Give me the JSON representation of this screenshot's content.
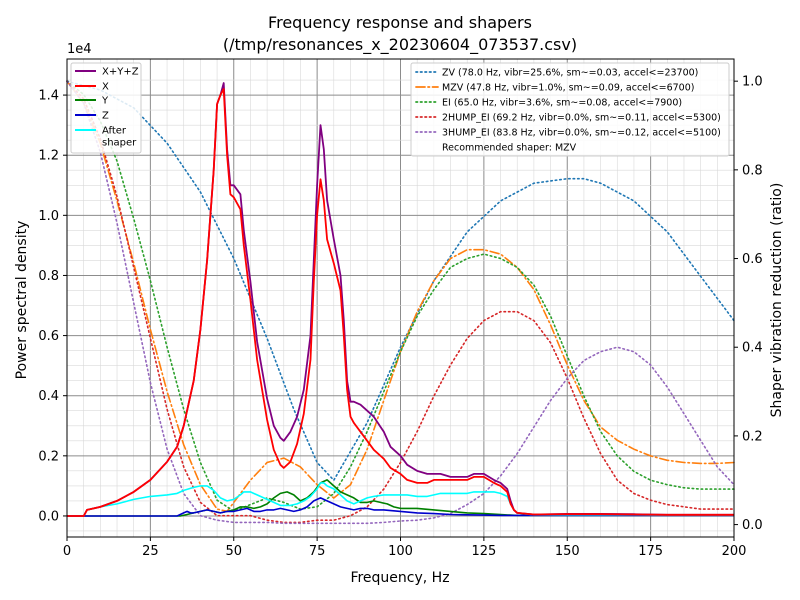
{
  "chart_data": {
    "type": "line",
    "title": "Frequency response and shapers",
    "subtitle": "(/tmp/resonances_x_20230604_073537.csv)",
    "xlabel": "Frequency, Hz",
    "ylabel": "Power spectral density",
    "y2label": "Shaper vibration reduction (ratio)",
    "y_offset_label": "1e4",
    "xlim": [
      0,
      200
    ],
    "ylim": [
      -0.07,
      1.52
    ],
    "y2lim": [
      -0.028,
      1.05
    ],
    "x_ticks": [
      0,
      25,
      50,
      75,
      100,
      125,
      150,
      175,
      200
    ],
    "y_ticks": [
      0.0,
      0.2,
      0.4,
      0.6,
      0.8,
      1.0,
      1.2,
      1.4
    ],
    "y_tick_labels": [
      "0.0",
      "0.2",
      "0.4",
      "0.6",
      "0.8",
      "1.0",
      "1.2",
      "1.4"
    ],
    "y2_ticks": [
      0.0,
      0.2,
      0.4,
      0.6,
      0.8,
      1.0
    ],
    "y2_tick_labels": [
      "0.0",
      "0.2",
      "0.4",
      "0.6",
      "0.8",
      "1.0"
    ],
    "grid": true,
    "legend_left_placement": "top-left",
    "legend_right_placement": "top-right",
    "psd_series": [
      {
        "name": "X+Y+Z",
        "color": "#800080",
        "x": [
          0,
          5,
          6,
          10,
          15,
          20,
          25,
          30,
          33,
          35,
          38,
          40,
          42,
          44,
          45,
          46,
          47,
          48,
          49,
          50,
          52,
          53,
          55,
          57,
          60,
          62,
          64,
          65,
          67,
          69,
          71,
          73,
          74,
          75,
          76,
          77,
          78,
          80,
          82,
          83,
          84,
          85,
          86,
          88,
          90,
          92,
          95,
          97,
          100,
          102,
          105,
          108,
          110,
          112,
          115,
          118,
          120,
          122,
          125,
          128,
          130,
          132,
          133,
          134,
          135,
          140,
          150,
          160,
          170,
          180,
          190,
          200
        ],
        "y": [
          0,
          0,
          0.02,
          0.03,
          0.05,
          0.08,
          0.12,
          0.18,
          0.23,
          0.3,
          0.45,
          0.62,
          0.85,
          1.15,
          1.37,
          1.4,
          1.44,
          1.22,
          1.1,
          1.1,
          1.07,
          0.95,
          0.78,
          0.58,
          0.39,
          0.3,
          0.26,
          0.25,
          0.28,
          0.33,
          0.42,
          0.6,
          0.85,
          1.1,
          1.3,
          1.22,
          1.05,
          0.92,
          0.8,
          0.65,
          0.45,
          0.38,
          0.38,
          0.37,
          0.35,
          0.33,
          0.28,
          0.23,
          0.2,
          0.17,
          0.15,
          0.14,
          0.14,
          0.14,
          0.13,
          0.13,
          0.13,
          0.14,
          0.14,
          0.12,
          0.11,
          0.09,
          0.05,
          0.02,
          0.01,
          0.005,
          0.007,
          0.007,
          0.006,
          0.004,
          0.004,
          0.004
        ]
      },
      {
        "name": "X",
        "color": "#ff0000",
        "x": [
          0,
          5,
          6,
          10,
          15,
          20,
          25,
          30,
          33,
          35,
          38,
          40,
          42,
          44,
          45,
          46,
          47,
          48,
          49,
          50,
          52,
          53,
          55,
          57,
          60,
          62,
          64,
          65,
          67,
          69,
          71,
          73,
          74,
          75,
          76,
          77,
          78,
          80,
          82,
          83,
          84,
          85,
          86,
          88,
          90,
          92,
          95,
          97,
          100,
          102,
          105,
          108,
          110,
          112,
          115,
          118,
          120,
          122,
          125,
          128,
          130,
          132,
          133,
          134,
          135,
          140,
          150,
          160,
          170,
          180,
          190,
          200
        ],
        "y": [
          0,
          0,
          0.02,
          0.03,
          0.05,
          0.08,
          0.12,
          0.18,
          0.23,
          0.3,
          0.45,
          0.62,
          0.85,
          1.15,
          1.37,
          1.4,
          1.42,
          1.2,
          1.07,
          1.06,
          1.02,
          0.9,
          0.72,
          0.52,
          0.32,
          0.22,
          0.17,
          0.16,
          0.18,
          0.24,
          0.34,
          0.52,
          0.78,
          1.0,
          1.12,
          1.05,
          0.92,
          0.84,
          0.75,
          0.6,
          0.42,
          0.33,
          0.31,
          0.28,
          0.25,
          0.22,
          0.19,
          0.16,
          0.14,
          0.12,
          0.11,
          0.11,
          0.12,
          0.12,
          0.12,
          0.12,
          0.12,
          0.13,
          0.13,
          0.11,
          0.1,
          0.08,
          0.04,
          0.02,
          0.01,
          0.005,
          0.006,
          0.006,
          0.005,
          0.004,
          0.004,
          0.004
        ]
      },
      {
        "name": "Y",
        "color": "#008000",
        "x": [
          0,
          5,
          10,
          20,
          30,
          34,
          36,
          38,
          40,
          42,
          44,
          46,
          48,
          50,
          52,
          54,
          56,
          58,
          60,
          62,
          64,
          66,
          68,
          70,
          72,
          74,
          76,
          78,
          80,
          82,
          84,
          86,
          88,
          90,
          92,
          94,
          96,
          98,
          100,
          105,
          110,
          115,
          120,
          125,
          130,
          133,
          135,
          140,
          150,
          200
        ],
        "y": [
          0,
          0,
          0,
          0,
          0,
          0,
          0.005,
          0.01,
          0.015,
          0.02,
          0.015,
          0.01,
          0.015,
          0.02,
          0.03,
          0.03,
          0.025,
          0.03,
          0.04,
          0.06,
          0.075,
          0.08,
          0.07,
          0.05,
          0.06,
          0.08,
          0.11,
          0.12,
          0.1,
          0.08,
          0.07,
          0.06,
          0.045,
          0.045,
          0.05,
          0.045,
          0.04,
          0.03,
          0.025,
          0.025,
          0.02,
          0.015,
          0.01,
          0.008,
          0.005,
          0.003,
          0.002,
          0.002,
          0.002,
          0.002
        ]
      },
      {
        "name": "Z",
        "color": "#0000cd",
        "x": [
          0,
          5,
          10,
          20,
          30,
          33,
          35,
          36,
          37,
          38,
          40,
          42,
          44,
          46,
          48,
          50,
          52,
          54,
          56,
          58,
          60,
          62,
          64,
          66,
          68,
          70,
          72,
          74,
          76,
          78,
          80,
          82,
          84,
          86,
          88,
          90,
          92,
          95,
          100,
          105,
          110,
          115,
          120,
          125,
          130,
          135,
          140,
          150,
          200
        ],
        "y": [
          0,
          0,
          0,
          0,
          0,
          0,
          0.01,
          0.015,
          0.01,
          0.01,
          0.015,
          0.02,
          0.015,
          0.01,
          0.015,
          0.015,
          0.02,
          0.025,
          0.015,
          0.015,
          0.02,
          0.02,
          0.025,
          0.02,
          0.015,
          0.02,
          0.03,
          0.05,
          0.06,
          0.05,
          0.04,
          0.03,
          0.025,
          0.02,
          0.025,
          0.025,
          0.02,
          0.02,
          0.015,
          0.01,
          0.008,
          0.005,
          0.004,
          0.003,
          0.002,
          0.002,
          0.002,
          0.002,
          0.002
        ]
      },
      {
        "name": "After\nshaper",
        "color": "#00ffff",
        "x": [
          0,
          5,
          6,
          10,
          15,
          20,
          25,
          30,
          33,
          35,
          38,
          40,
          42,
          44,
          46,
          48,
          50,
          52,
          53,
          54,
          55,
          57,
          60,
          62,
          64,
          65,
          67,
          69,
          71,
          73,
          75,
          76,
          77,
          78,
          80,
          82,
          84,
          86,
          88,
          90,
          92,
          95,
          97,
          100,
          102,
          105,
          108,
          110,
          112,
          115,
          118,
          120,
          122,
          125,
          128,
          130,
          132,
          133,
          134,
          135,
          140,
          150,
          160,
          170,
          180,
          190,
          200
        ],
        "y": [
          0,
          0,
          0.02,
          0.03,
          0.04,
          0.055,
          0.065,
          0.07,
          0.075,
          0.085,
          0.095,
          0.1,
          0.1,
          0.085,
          0.06,
          0.05,
          0.055,
          0.07,
          0.08,
          0.08,
          0.08,
          0.07,
          0.055,
          0.045,
          0.035,
          0.035,
          0.035,
          0.04,
          0.05,
          0.065,
          0.09,
          0.11,
          0.11,
          0.1,
          0.09,
          0.07,
          0.05,
          0.04,
          0.05,
          0.06,
          0.065,
          0.07,
          0.07,
          0.07,
          0.07,
          0.065,
          0.065,
          0.07,
          0.075,
          0.075,
          0.075,
          0.075,
          0.08,
          0.08,
          0.08,
          0.075,
          0.065,
          0.04,
          0.02,
          0.01,
          0.004,
          0.004,
          0.004,
          0.004,
          0.003,
          0.003,
          0.003
        ]
      }
    ],
    "shaper_series": [
      {
        "name": "ZV (78.0 Hz, vibr=25.6%, sm~=0.03, accel<=23700)",
        "color": "#1f77b4",
        "style": "dotted",
        "x": [
          0,
          10,
          20,
          30,
          40,
          50,
          60,
          68,
          75,
          80,
          90,
          100,
          110,
          120,
          130,
          140,
          150,
          155,
          160,
          170,
          180,
          190,
          196,
          200
        ],
        "y": [
          1.0,
          0.98,
          0.94,
          0.86,
          0.75,
          0.6,
          0.42,
          0.26,
          0.14,
          0.1,
          0.23,
          0.4,
          0.55,
          0.66,
          0.73,
          0.77,
          0.78,
          0.78,
          0.77,
          0.73,
          0.66,
          0.56,
          0.5,
          0.46
        ]
      },
      {
        "name": "MZV (47.8 Hz, vibr=1.0%, sm~=0.09, accel<=6700)",
        "color": "#ff7f0e",
        "style": "dashdot",
        "x": [
          0,
          5,
          10,
          15,
          20,
          25,
          30,
          35,
          40,
          45,
          48,
          50,
          55,
          60,
          65,
          70,
          75,
          80,
          85,
          90,
          95,
          100,
          105,
          110,
          115,
          120,
          125,
          130,
          135,
          140,
          145,
          150,
          155,
          160,
          165,
          170,
          175,
          180,
          185,
          190,
          195,
          200
        ],
        "y": [
          1.0,
          0.95,
          0.86,
          0.73,
          0.59,
          0.44,
          0.3,
          0.18,
          0.09,
          0.035,
          0.03,
          0.05,
          0.1,
          0.14,
          0.15,
          0.13,
          0.09,
          0.06,
          0.09,
          0.17,
          0.28,
          0.39,
          0.48,
          0.55,
          0.6,
          0.62,
          0.62,
          0.61,
          0.58,
          0.53,
          0.45,
          0.36,
          0.28,
          0.22,
          0.19,
          0.17,
          0.155,
          0.145,
          0.14,
          0.138,
          0.138,
          0.14
        ]
      },
      {
        "name": "EI (65.0 Hz, vibr=3.6%, sm~=0.08, accel<=7900)",
        "color": "#2ca02c",
        "style": "dotted",
        "x": [
          0,
          5,
          10,
          15,
          20,
          25,
          30,
          35,
          40,
          45,
          50,
          55,
          60,
          65,
          70,
          75,
          80,
          85,
          90,
          95,
          100,
          105,
          110,
          115,
          120,
          125,
          130,
          135,
          140,
          145,
          150,
          155,
          160,
          165,
          170,
          175,
          180,
          185,
          190,
          195,
          200
        ],
        "y": [
          1.0,
          0.97,
          0.91,
          0.82,
          0.69,
          0.55,
          0.4,
          0.26,
          0.14,
          0.055,
          0.03,
          0.045,
          0.06,
          0.05,
          0.035,
          0.04,
          0.07,
          0.13,
          0.21,
          0.3,
          0.39,
          0.47,
          0.53,
          0.58,
          0.6,
          0.61,
          0.6,
          0.58,
          0.54,
          0.47,
          0.38,
          0.29,
          0.21,
          0.155,
          0.12,
          0.1,
          0.09,
          0.083,
          0.08,
          0.08,
          0.08
        ]
      },
      {
        "name": "2HUMP_EI (69.2 Hz, vibr=0.0%, sm~=0.11, accel<=5300)",
        "color": "#d62728",
        "style": "dotted",
        "x": [
          0,
          5,
          10,
          15,
          20,
          25,
          30,
          35,
          40,
          45,
          50,
          55,
          60,
          65,
          70,
          75,
          80,
          85,
          90,
          95,
          100,
          105,
          110,
          115,
          120,
          125,
          130,
          135,
          140,
          145,
          150,
          155,
          160,
          165,
          170,
          175,
          180,
          185,
          190,
          195,
          200
        ],
        "y": [
          1.0,
          0.96,
          0.87,
          0.74,
          0.58,
          0.42,
          0.26,
          0.13,
          0.05,
          0.02,
          0.02,
          0.02,
          0.01,
          0.005,
          0.005,
          0.01,
          0.01,
          0.02,
          0.04,
          0.08,
          0.14,
          0.21,
          0.29,
          0.36,
          0.42,
          0.46,
          0.48,
          0.48,
          0.46,
          0.41,
          0.33,
          0.24,
          0.16,
          0.1,
          0.07,
          0.055,
          0.045,
          0.04,
          0.035,
          0.035,
          0.035
        ]
      },
      {
        "name": "3HUMP_EI (83.8 Hz, vibr=0.0%, sm~=0.12, accel<=5100)",
        "color": "#9467bd",
        "style": "dotted",
        "x": [
          0,
          5,
          10,
          15,
          20,
          25,
          30,
          35,
          40,
          45,
          50,
          55,
          60,
          65,
          70,
          75,
          80,
          85,
          90,
          95,
          100,
          105,
          110,
          115,
          120,
          125,
          130,
          135,
          140,
          145,
          150,
          155,
          160,
          165,
          170,
          175,
          180,
          185,
          190,
          195,
          200
        ],
        "y": [
          1.0,
          0.95,
          0.84,
          0.68,
          0.5,
          0.32,
          0.17,
          0.07,
          0.02,
          0.01,
          0.005,
          0.005,
          0.005,
          0.003,
          0.003,
          0.003,
          0.003,
          0.003,
          0.003,
          0.005,
          0.008,
          0.01,
          0.015,
          0.025,
          0.045,
          0.07,
          0.11,
          0.16,
          0.22,
          0.28,
          0.33,
          0.37,
          0.39,
          0.4,
          0.39,
          0.36,
          0.31,
          0.25,
          0.19,
          0.13,
          0.09
        ]
      }
    ],
    "recommended_text": "Recommended shaper: MZV"
  }
}
